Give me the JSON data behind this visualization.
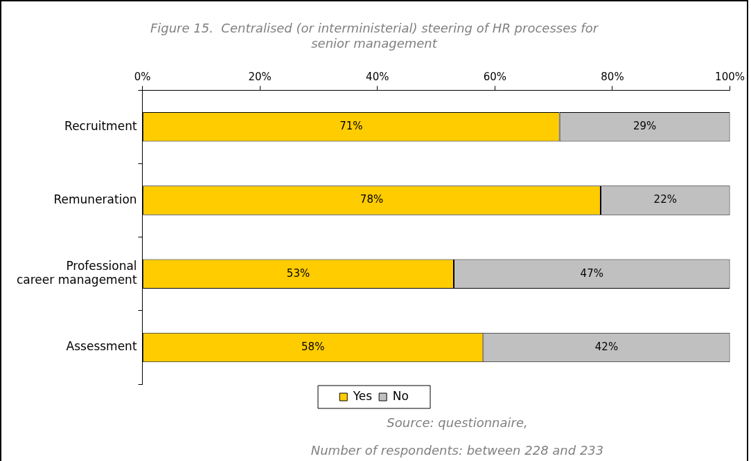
{
  "chart_data": {
    "type": "bar",
    "orientation": "horizontal",
    "stacked": true,
    "title": "Figure 15.  Centralised (or interministerial) steering of HR processes for senior management",
    "categories": [
      "Recruitment",
      "Remuneration",
      "Professional career management",
      "Assessment"
    ],
    "series": [
      {
        "name": "Yes",
        "color": "#ffcc00",
        "values": [
          71,
          78,
          53,
          58
        ],
        "value_labels": [
          "71%",
          "78%",
          "53%",
          "58%"
        ]
      },
      {
        "name": "No",
        "color": "#c0c0c0",
        "values": [
          29,
          22,
          47,
          42
        ],
        "value_labels": [
          "29%",
          "22%",
          "47%",
          "42%"
        ]
      }
    ],
    "xlim": [
      0,
      100
    ],
    "xticks": [
      {
        "value": 0,
        "label": "0%"
      },
      {
        "value": 20,
        "label": "20%"
      },
      {
        "value": 40,
        "label": "40%"
      },
      {
        "value": 60,
        "label": "60%"
      },
      {
        "value": 80,
        "label": "80%"
      },
      {
        "value": 100,
        "label": "100%"
      }
    ],
    "grid": false,
    "legend": "bottom",
    "annotations": [
      "Source: questionnaire,",
      "Number of respondents: between 228 and 233"
    ]
  }
}
